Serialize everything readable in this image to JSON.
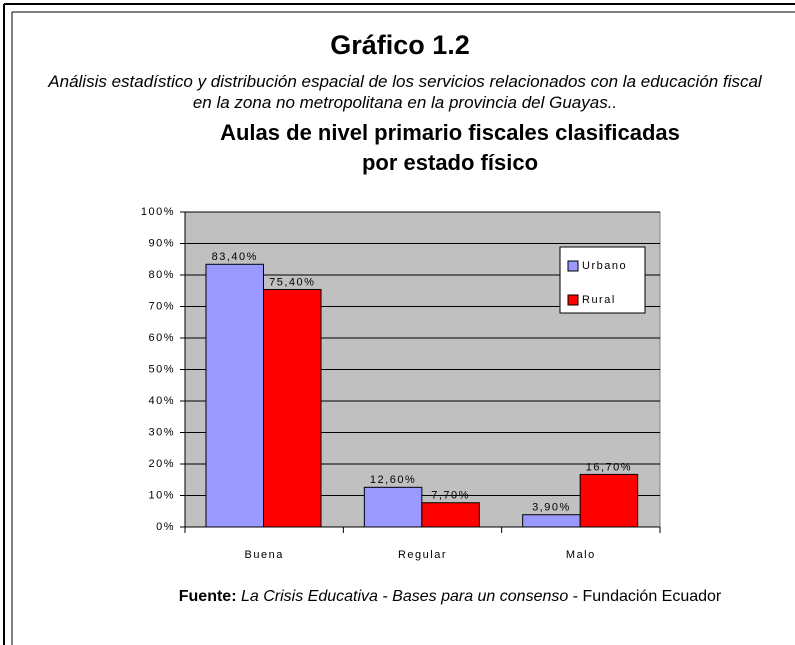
{
  "heading": "Gráfico 1.2",
  "subheading": "Análisis estadístico y distribución espacial de los servicios relacionados con la educación fiscal en la zona no metropolitana en la provincia del Guayas..",
  "chart_data": {
    "type": "bar",
    "title": "Aulas de nivel primario fiscales clasificadas por estado físico",
    "categories": [
      "Buena",
      "Regular",
      "Malo"
    ],
    "series": [
      {
        "name": "Urbano",
        "color": "#9999ff",
        "values": [
          83.4,
          12.6,
          3.9
        ],
        "value_labels": [
          "83,40%",
          "12,60%",
          "3,90%"
        ]
      },
      {
        "name": "Rural",
        "color": "#ff0000",
        "values": [
          75.4,
          7.7,
          16.7
        ],
        "value_labels": [
          "75,40%",
          "7,70%",
          "16,70%"
        ]
      }
    ],
    "ylim": [
      0,
      100
    ],
    "yticks": [
      {
        "value": 0,
        "label": "0%"
      },
      {
        "value": 10,
        "label": "10%"
      },
      {
        "value": 20,
        "label": "20%"
      },
      {
        "value": 30,
        "label": "30%"
      },
      {
        "value": 40,
        "label": "40%"
      },
      {
        "value": 50,
        "label": "50%"
      },
      {
        "value": 60,
        "label": "60%"
      },
      {
        "value": 70,
        "label": "70%"
      },
      {
        "value": 80,
        "label": "80%"
      },
      {
        "value": 90,
        "label": "90%"
      },
      {
        "value": 100,
        "label": "100%"
      }
    ],
    "grid": true,
    "legend": "upper right",
    "background": "#c0c0c0"
  },
  "source": {
    "label": "Fuente:",
    "work": "La Crisis Educativa - Bases para un consenso",
    "publisher": "- Fundación Ecuador"
  }
}
